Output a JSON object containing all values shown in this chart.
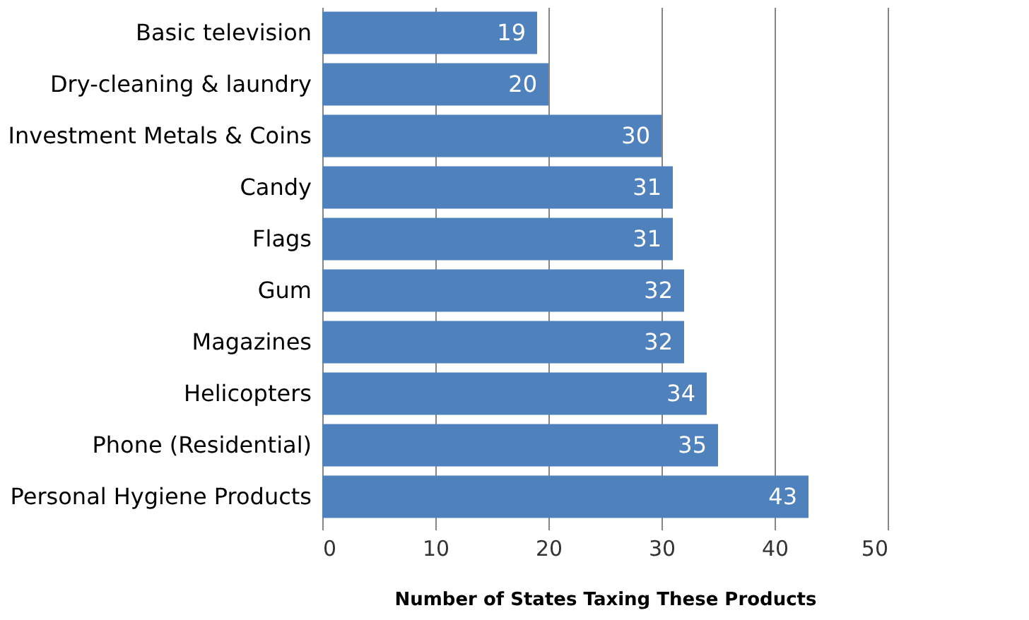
{
  "chart_data": {
    "type": "bar",
    "orientation": "horizontal",
    "xlabel": "Number of States Taxing These Products",
    "categories": [
      "Basic television",
      "Dry-cleaning & laundry",
      "Investment Metals & Coins",
      "Candy",
      "Flags",
      "Gum",
      "Magazines",
      "Helicopters",
      "Phone (Residential)",
      "Personal Hygiene Products"
    ],
    "values": [
      19,
      20,
      30,
      31,
      31,
      32,
      32,
      34,
      35,
      43
    ],
    "color": "#4f81bd",
    "xlim": [
      0,
      50
    ],
    "xticks": [
      0,
      10,
      20,
      30,
      40,
      50
    ],
    "grid": "x",
    "data_labels": true
  }
}
